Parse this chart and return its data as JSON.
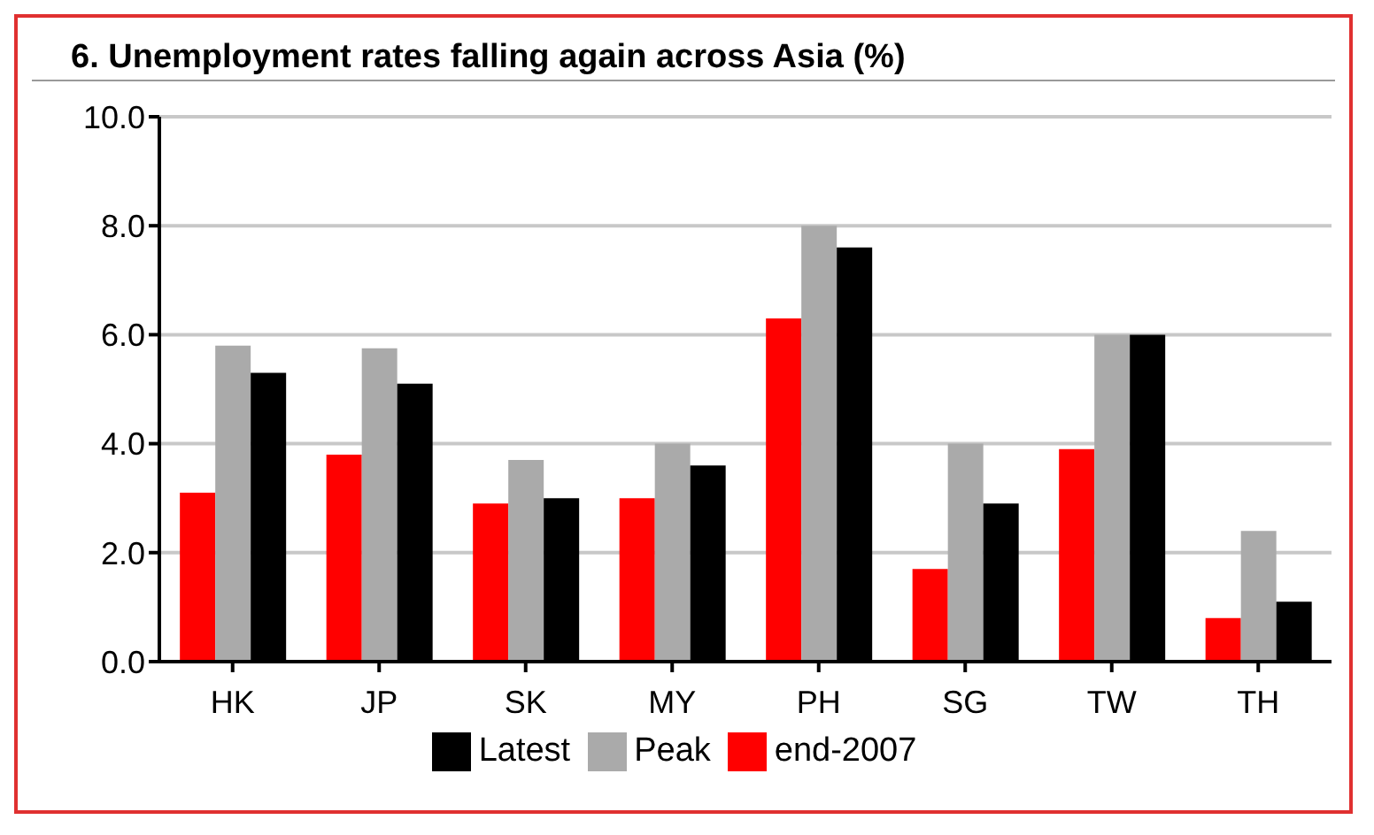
{
  "chart_data": {
    "type": "bar",
    "title": "6. Unemployment rates falling again across Asia (%)",
    "categories": [
      "HK",
      "JP",
      "SK",
      "MY",
      "PH",
      "SG",
      "TW",
      "TH"
    ],
    "series": [
      {
        "name": "end-2007",
        "color": "#ff0000",
        "values": [
          3.1,
          3.8,
          2.9,
          3.0,
          6.3,
          1.7,
          3.9,
          0.8
        ]
      },
      {
        "name": "Peak",
        "color": "#aaaaaa",
        "values": [
          5.8,
          5.75,
          3.7,
          4.0,
          8.0,
          4.0,
          6.0,
          2.4
        ]
      },
      {
        "name": "Latest",
        "color": "#000000",
        "values": [
          5.3,
          5.1,
          3.0,
          3.6,
          7.6,
          2.9,
          6.0,
          1.1
        ]
      }
    ],
    "ylim": [
      0,
      10
    ],
    "yticks": [
      {
        "value": 0,
        "label": "0.0"
      },
      {
        "value": 2,
        "label": "2.0"
      },
      {
        "value": 4,
        "label": "4.0"
      },
      {
        "value": 6,
        "label": "6.0"
      },
      {
        "value": 8,
        "label": "8.0"
      },
      {
        "value": 10,
        "label": "10.0"
      }
    ],
    "grid": "y",
    "legend": "bottom"
  }
}
